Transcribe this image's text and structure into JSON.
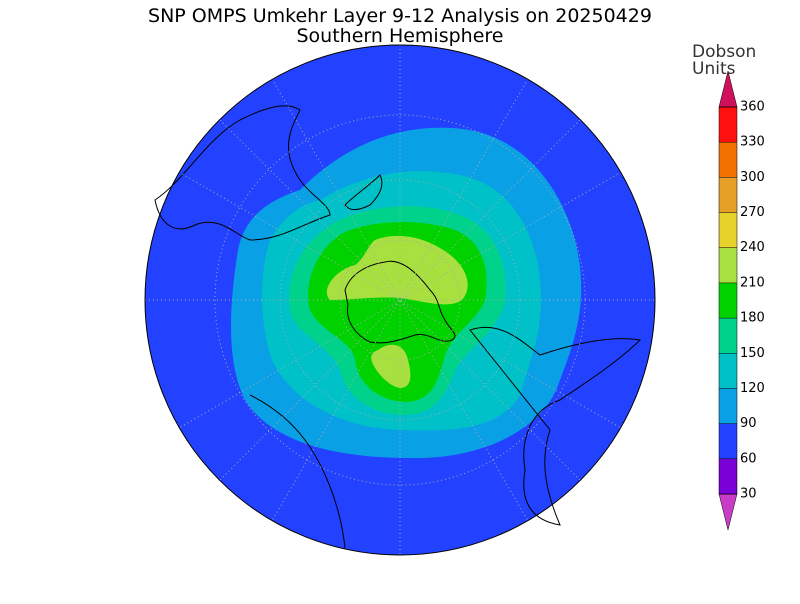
{
  "title": "SNP OMPS Umkehr Layer 9-12 Analysis on 20250429",
  "subtitle": "Southern Hemisphere",
  "colorbar": {
    "label_lines": [
      "Dobson",
      "Units"
    ],
    "ticks": [
      30,
      60,
      90,
      120,
      150,
      180,
      210,
      240,
      270,
      300,
      330,
      360
    ],
    "colors": [
      "#c83cc8",
      "#7a00d8",
      "#2342ff",
      "#0aa0e6",
      "#00c0c8",
      "#00d28c",
      "#00d200",
      "#a8e040",
      "#e6d22a",
      "#e6a028",
      "#f07000",
      "#ff1010",
      "#d0105a"
    ]
  }
}
